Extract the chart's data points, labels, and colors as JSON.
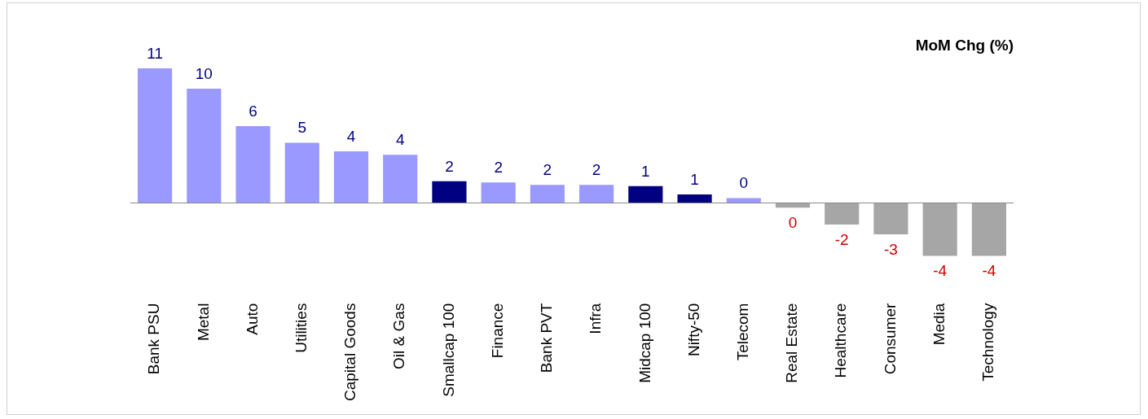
{
  "chart_data": {
    "type": "bar",
    "title": "MoM Chg (%)",
    "categories": [
      "Bank PSU",
      "Metal",
      "Auto",
      "Utilities",
      "Capital Goods",
      "Oil & Gas",
      "Smallcap 100",
      "Finance",
      "Bank PVT",
      "Infra",
      "Midcap 100",
      "Nifty-50",
      "Telecom",
      "Real Estate",
      "Healthcare",
      "Consumer",
      "Media",
      "Technology"
    ],
    "values": [
      11.2,
      9.5,
      6.4,
      5.0,
      4.3,
      4.0,
      1.8,
      1.7,
      1.5,
      1.5,
      1.4,
      0.7,
      0.4,
      -0.4,
      -1.8,
      -2.6,
      -4.4,
      -4.4
    ],
    "value_labels": [
      "11",
      "10",
      "6",
      "5",
      "4",
      "4",
      "2",
      "2",
      "2",
      "2",
      "1",
      "1",
      "0",
      "0",
      "-2",
      "-3",
      "-4",
      "-4"
    ],
    "colors": [
      "#9999ff",
      "#9999ff",
      "#9999ff",
      "#9999ff",
      "#9999ff",
      "#9999ff",
      "#000080",
      "#9999ff",
      "#9999ff",
      "#9999ff",
      "#000080",
      "#000080",
      "#9999ff",
      "#a6a6a6",
      "#a6a6a6",
      "#a6a6a6",
      "#a6a6a6",
      "#a6a6a6"
    ],
    "grid": false,
    "legend": false
  }
}
